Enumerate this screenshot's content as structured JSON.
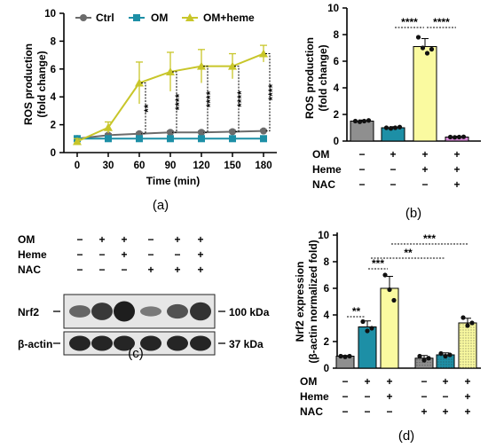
{
  "figure_labels": {
    "a": "(a)",
    "b": "(b)",
    "c": "(c)",
    "d": "(d)"
  },
  "chart_data": [
    {
      "type": "line",
      "ylabel_1": "ROS production",
      "ylabel_2": "(fold change)",
      "xlabel": "Time (min)",
      "x": [
        0,
        30,
        60,
        90,
        120,
        150,
        180
      ],
      "ylim": [
        0,
        10
      ],
      "yticks": [
        0,
        2,
        4,
        6,
        8,
        10
      ],
      "series": [
        {
          "name": "Ctrl",
          "color": "#6b6b6b",
          "marker": "circle",
          "values": [
            1.0,
            1.25,
            1.35,
            1.45,
            1.45,
            1.5,
            1.55
          ],
          "err": [
            0.1,
            0.1,
            0.1,
            0.1,
            0.1,
            0.1,
            0.1
          ]
        },
        {
          "name": "OM",
          "color": "#1d8fa6",
          "marker": "square",
          "values": [
            1.0,
            1.0,
            1.0,
            1.0,
            1.0,
            1.0,
            1.0
          ],
          "err": [
            0.05,
            0.05,
            0.05,
            0.05,
            0.05,
            0.05,
            0.05
          ]
        },
        {
          "name": "OM+heme",
          "color": "#c8c62a",
          "marker": "triangle",
          "values": [
            0.8,
            1.8,
            5.0,
            5.8,
            6.2,
            6.2,
            7.1
          ],
          "err": [
            0.2,
            0.4,
            1.5,
            1.4,
            1.2,
            0.9,
            0.6
          ]
        }
      ],
      "annotations": [
        "**",
        "****",
        "****",
        "****",
        "****"
      ]
    },
    {
      "type": "bar",
      "ylabel_1": "ROS production",
      "ylabel_2": "(fold change)",
      "ylim": [
        0,
        10
      ],
      "yticks": [
        0,
        2,
        4,
        6,
        8,
        10
      ],
      "values": [
        1.5,
        1.0,
        7.1,
        0.3
      ],
      "err": [
        0.08,
        0.08,
        0.6,
        0.06
      ],
      "colors": [
        "#8f8f8f",
        "#1d8fa6",
        "#fafaa0",
        "#d889d8"
      ],
      "points": [
        [
          1.5,
          1.45,
          1.5,
          1.55
        ],
        [
          1.0,
          0.95,
          1.0,
          1.05
        ],
        [
          7.8,
          7.0,
          6.6,
          6.9
        ],
        [
          0.3,
          0.28,
          0.3,
          0.32
        ]
      ],
      "conditions": {
        "rows": [
          "OM",
          "Heme",
          "NAC"
        ],
        "signs": [
          [
            "−",
            "+",
            "+",
            "+"
          ],
          [
            "−",
            "−",
            "+",
            "+"
          ],
          [
            "−",
            "−",
            "−",
            "+"
          ]
        ]
      },
      "annotations": [
        "****",
        "****"
      ]
    },
    {
      "type": "bar",
      "ylabel_1": "Nrf2 expression",
      "ylabel_2": "(β-actin normalized fold)",
      "ylim": [
        0,
        10
      ],
      "yticks": [
        0,
        2,
        4,
        6,
        8,
        10
      ],
      "values": [
        0.9,
        3.1,
        6.0,
        0.75,
        1.0,
        3.4
      ],
      "err": [
        0.05,
        0.45,
        0.9,
        0.2,
        0.15,
        0.35
      ],
      "colors": [
        "#8f8f8f",
        "#1d8fa6",
        "#fafaa0",
        "#8f8f8f",
        "#1d8fa6",
        "#fafaa0"
      ],
      "points": [
        [
          0.9,
          0.85,
          0.9
        ],
        [
          3.5,
          2.8,
          3.0
        ],
        [
          7.0,
          5.9,
          5.1
        ],
        [
          0.9,
          0.6,
          0.75
        ],
        [
          1.1,
          0.9,
          1.0
        ],
        [
          3.8,
          3.2,
          3.4
        ]
      ],
      "conditions": {
        "rows": [
          "OM",
          "Heme",
          "NAC"
        ],
        "signs": [
          [
            "−",
            "+",
            "+",
            "−",
            "+",
            "+"
          ],
          [
            "−",
            "−",
            "+",
            "−",
            "−",
            "+"
          ],
          [
            "−",
            "−",
            "−",
            "+",
            "+",
            "+"
          ]
        ]
      },
      "annotations": [
        "**",
        "***",
        "**",
        "***"
      ]
    }
  ],
  "blot": {
    "rows": [
      "OM",
      "Heme",
      "NAC"
    ],
    "signs": [
      [
        "−",
        "+",
        "+",
        "−",
        "+",
        "+"
      ],
      [
        "−",
        "−",
        "+",
        "−",
        "−",
        "+"
      ],
      [
        "−",
        "−",
        "−",
        "+",
        "+",
        "+"
      ]
    ],
    "bands": [
      {
        "label": "Nrf2",
        "size": "100 kDa",
        "intensity": [
          0.45,
          0.8,
          1.0,
          0.3,
          0.6,
          0.85
        ]
      },
      {
        "label": "β-actin",
        "size": "37 kDa",
        "intensity": [
          0.95,
          0.95,
          0.95,
          0.95,
          0.95,
          0.95
        ]
      }
    ]
  }
}
